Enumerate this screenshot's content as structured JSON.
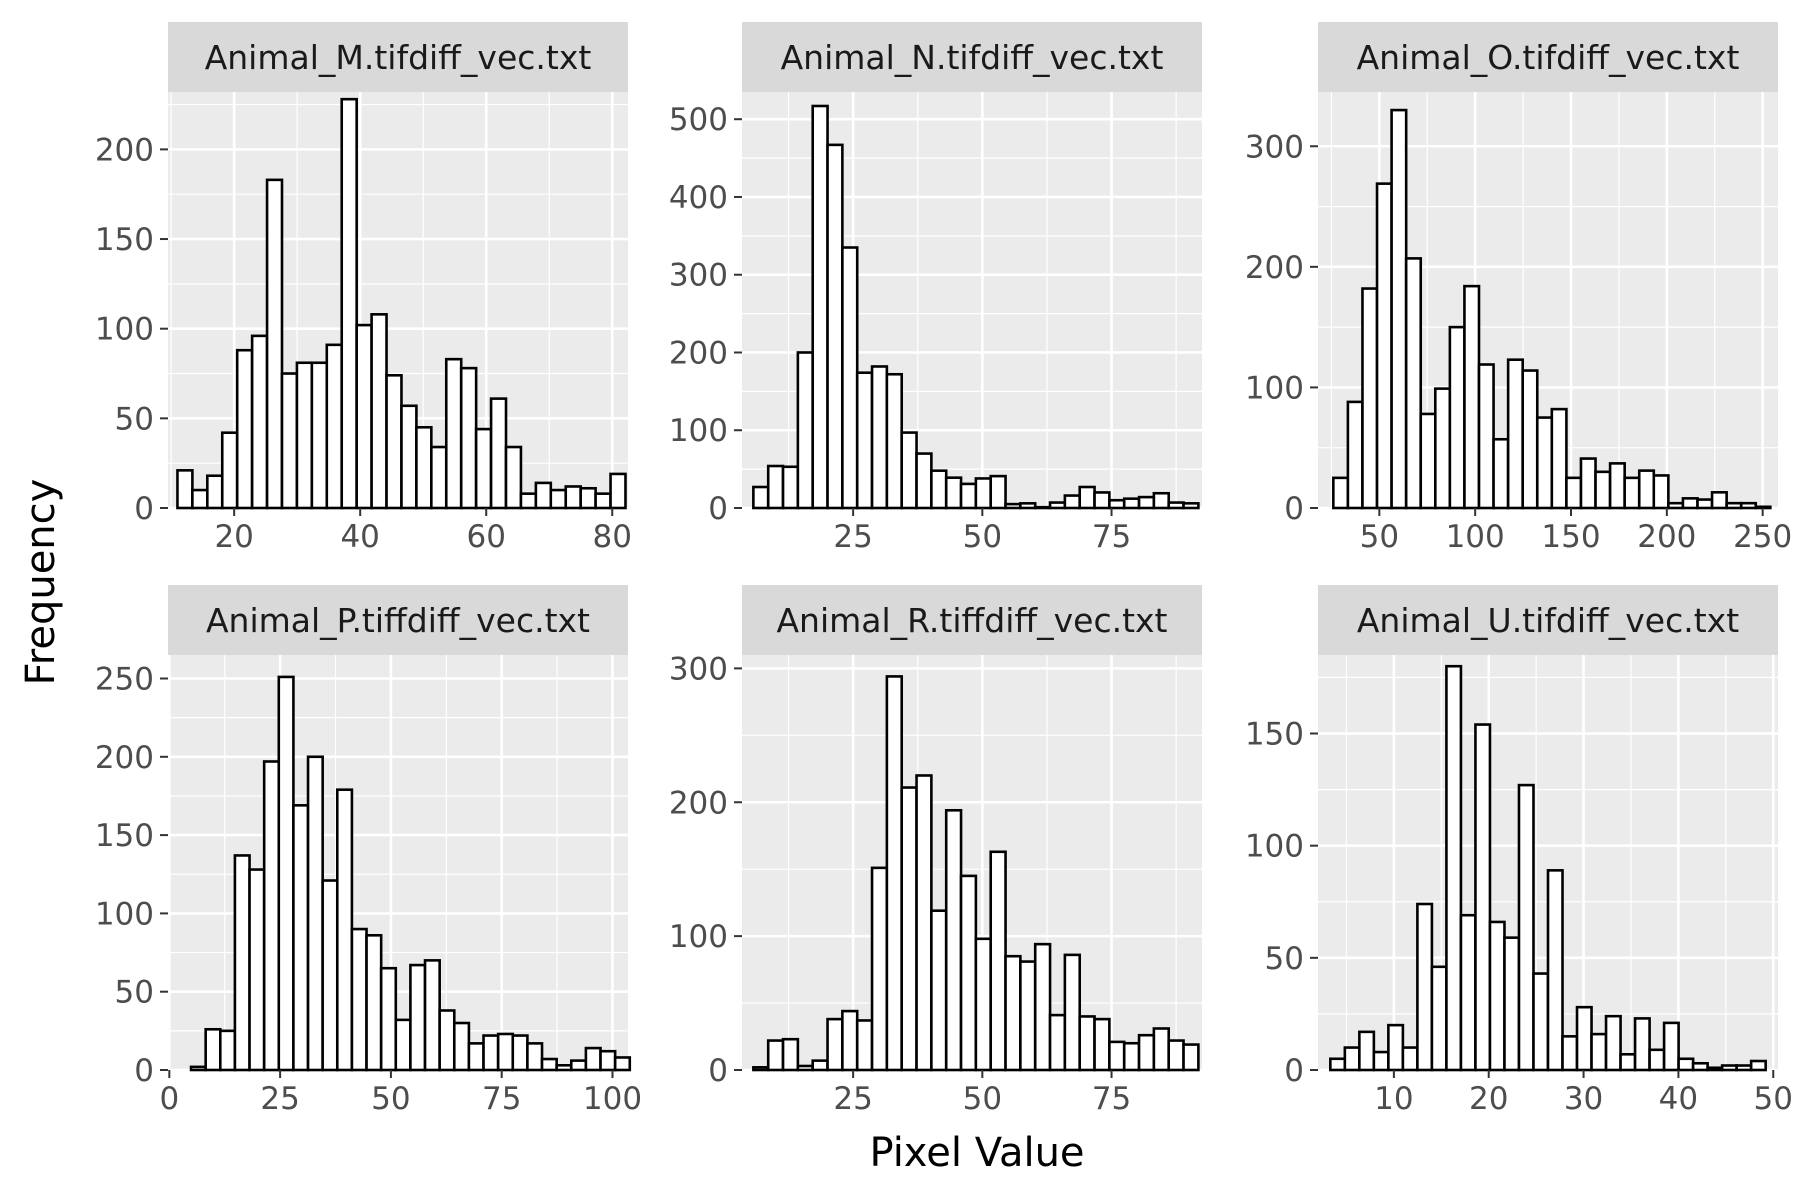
{
  "figure": {
    "xlabel": "Pixel Value",
    "ylabel": "Frequency"
  },
  "colors": {
    "panel_background": "#ebebeb",
    "strip_background": "#d9d9d9",
    "grid": "#ffffff",
    "bar_fill": "#ffffff",
    "bar_outline": "#000000"
  },
  "chart_data": [
    {
      "type": "bar",
      "title": "Animal_M.tifdiff_vec.txt",
      "x_range": [
        9.5,
        82.5
      ],
      "y_range": [
        0,
        232
      ],
      "x_ticks": [
        20,
        40,
        60,
        80
      ],
      "x_tick_labels": [
        "20",
        "40",
        "60",
        "80"
      ],
      "y_ticks": [
        0,
        50,
        100,
        150,
        200
      ],
      "y_tick_labels": [
        "0",
        "50",
        "100",
        "150",
        "200"
      ],
      "bin_start": 11,
      "bin_width": 2.37,
      "values": [
        21,
        10,
        18,
        42,
        88,
        96,
        183,
        75,
        81,
        81,
        91,
        228,
        102,
        108,
        74,
        57,
        45,
        34,
        83,
        78,
        44,
        61,
        34,
        8,
        14,
        10,
        12,
        11,
        8,
        19
      ]
    },
    {
      "type": "bar",
      "title": "Animal_N.tifdiff_vec.txt",
      "x_range": [
        3.5,
        92.5
      ],
      "y_range": [
        0,
        535
      ],
      "x_ticks": [
        25,
        50,
        75
      ],
      "x_tick_labels": [
        "25",
        "50",
        "75"
      ],
      "y_ticks": [
        0,
        100,
        200,
        300,
        400,
        500
      ],
      "y_tick_labels": [
        "0",
        "100",
        "200",
        "300",
        "400",
        "500"
      ],
      "bin_start": 5.7,
      "bin_width": 2.87,
      "values": [
        27,
        54,
        53,
        200,
        517,
        467,
        335,
        174,
        182,
        172,
        97,
        70,
        48,
        39,
        31,
        38,
        41,
        5,
        6,
        1,
        7,
        16,
        27,
        20,
        10,
        12,
        14,
        19,
        7,
        6
      ]
    },
    {
      "type": "bar",
      "title": "Animal_O.tifdiff_vec.txt",
      "x_range": [
        18,
        258
      ],
      "y_range": [
        0,
        345
      ],
      "x_ticks": [
        50,
        100,
        150,
        200,
        250
      ],
      "x_tick_labels": [
        "50",
        "100",
        "150",
        "200",
        "250"
      ],
      "y_ticks": [
        0,
        100,
        200,
        300
      ],
      "y_tick_labels": [
        "0",
        "100",
        "200",
        "300"
      ],
      "bin_start": 26,
      "bin_width": 7.6,
      "values": [
        25,
        88,
        182,
        269,
        330,
        207,
        78,
        99,
        150,
        184,
        119,
        57,
        123,
        114,
        75,
        82,
        25,
        41,
        30,
        37,
        25,
        31,
        27,
        4,
        8,
        7,
        13,
        4,
        4,
        1
      ]
    },
    {
      "type": "bar",
      "title": "Animal_P.tiffdiff_vec.txt",
      "x_range": [
        -0.3,
        103.5
      ],
      "y_range": [
        0,
        265
      ],
      "x_ticks": [
        0,
        25,
        50,
        75,
        100
      ],
      "x_tick_labels": [
        "0",
        "25",
        "50",
        "75",
        "100"
      ],
      "y_ticks": [
        0,
        50,
        100,
        150,
        200,
        250
      ],
      "y_tick_labels": [
        "0",
        "50",
        "100",
        "150",
        "200",
        "250"
      ],
      "bin_start": 4.9,
      "bin_width": 3.3,
      "values": [
        2,
        26,
        25,
        137,
        128,
        197,
        251,
        169,
        200,
        121,
        179,
        90,
        86,
        65,
        32,
        67,
        70,
        38,
        30,
        17,
        22,
        23,
        22,
        17,
        7,
        3,
        6,
        14,
        12,
        8
      ]
    },
    {
      "type": "bar",
      "title": "Animal_R.tiffdiff_vec.txt",
      "x_range": [
        3.5,
        92.5
      ],
      "y_range": [
        0,
        310
      ],
      "x_ticks": [
        25,
        50,
        75
      ],
      "x_tick_labels": [
        "25",
        "50",
        "75"
      ],
      "y_ticks": [
        0,
        100,
        200,
        300
      ],
      "y_tick_labels": [
        "0",
        "100",
        "200",
        "300"
      ],
      "bin_start": 5.7,
      "bin_width": 2.87,
      "values": [
        2,
        22,
        23,
        3,
        7,
        38,
        44,
        37,
        151,
        294,
        211,
        220,
        119,
        194,
        145,
        98,
        163,
        85,
        81,
        94,
        41,
        86,
        40,
        38,
        21,
        20,
        26,
        31,
        22,
        19
      ]
    },
    {
      "type": "bar",
      "title": "Animal_U.tifdiff_vec.txt",
      "x_range": [
        2,
        50.5
      ],
      "y_range": [
        0,
        185
      ],
      "x_ticks": [
        10,
        20,
        30,
        40,
        50
      ],
      "x_tick_labels": [
        "10",
        "20",
        "30",
        "40",
        "50"
      ],
      "y_ticks": [
        0,
        50,
        100,
        150
      ],
      "y_tick_labels": [
        "0",
        "50",
        "100",
        "150"
      ],
      "bin_start": 3.3,
      "bin_width": 1.53,
      "values": [
        5,
        10,
        17,
        8,
        20,
        10,
        74,
        46,
        180,
        69,
        154,
        66,
        59,
        127,
        43,
        89,
        15,
        28,
        16,
        24,
        7,
        23,
        9,
        21,
        5,
        3,
        1,
        2,
        2,
        4
      ]
    }
  ]
}
